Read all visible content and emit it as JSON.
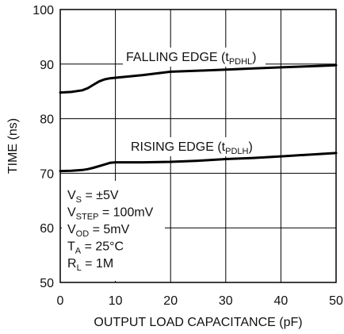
{
  "chart_data": {
    "type": "line",
    "xlabel": "OUTPUT LOAD CAPACITANCE (pF)",
    "ylabel": "TIME (ns)",
    "xlim": [
      0,
      50
    ],
    "ylim": [
      50,
      100
    ],
    "xticks": [
      "0",
      "10",
      "20",
      "30",
      "40",
      "50"
    ],
    "yticks": [
      "50",
      "60",
      "70",
      "80",
      "90",
      "100"
    ],
    "grid": true,
    "series": [
      {
        "name": "FALLING EDGE (tPDHL)",
        "label_main": "FALLING EDGE (t",
        "label_sub": "PDHL",
        "label_end": ")",
        "x": [
          0,
          2,
          4,
          5,
          6,
          7,
          8,
          9,
          10,
          15,
          20,
          25,
          30,
          35,
          40,
          45,
          50
        ],
        "y": [
          84.8,
          84.9,
          85.2,
          85.6,
          86.2,
          86.8,
          87.2,
          87.4,
          87.5,
          88.0,
          88.6,
          88.8,
          89.0,
          89.2,
          89.4,
          89.6,
          89.8
        ]
      },
      {
        "name": "RISING EDGE (tPDLH)",
        "label_main": "RISING EDGE (t",
        "label_sub": "PDLH",
        "label_end": ")",
        "x": [
          0,
          2,
          4,
          5,
          6,
          7,
          8,
          9,
          10,
          15,
          20,
          25,
          30,
          35,
          40,
          45,
          50
        ],
        "y": [
          70.4,
          70.45,
          70.6,
          70.75,
          71.0,
          71.3,
          71.6,
          71.9,
          72.0,
          72.0,
          72.1,
          72.3,
          72.6,
          72.8,
          73.1,
          73.4,
          73.7
        ]
      }
    ],
    "conditions": [
      {
        "main": "V",
        "sub": "S",
        "rest": " = ±5V"
      },
      {
        "main": "V",
        "sub": "STEP",
        "rest": " = 100mV"
      },
      {
        "main": "V",
        "sub": "OD",
        "rest": " = 5mV"
      },
      {
        "main": "T",
        "sub": "A",
        "rest": " = 25°C"
      },
      {
        "main": "R",
        "sub": "L",
        "rest": " = 1M"
      }
    ],
    "colors": {
      "line": "#000000",
      "grid": "#000000",
      "text": "#111111"
    }
  }
}
